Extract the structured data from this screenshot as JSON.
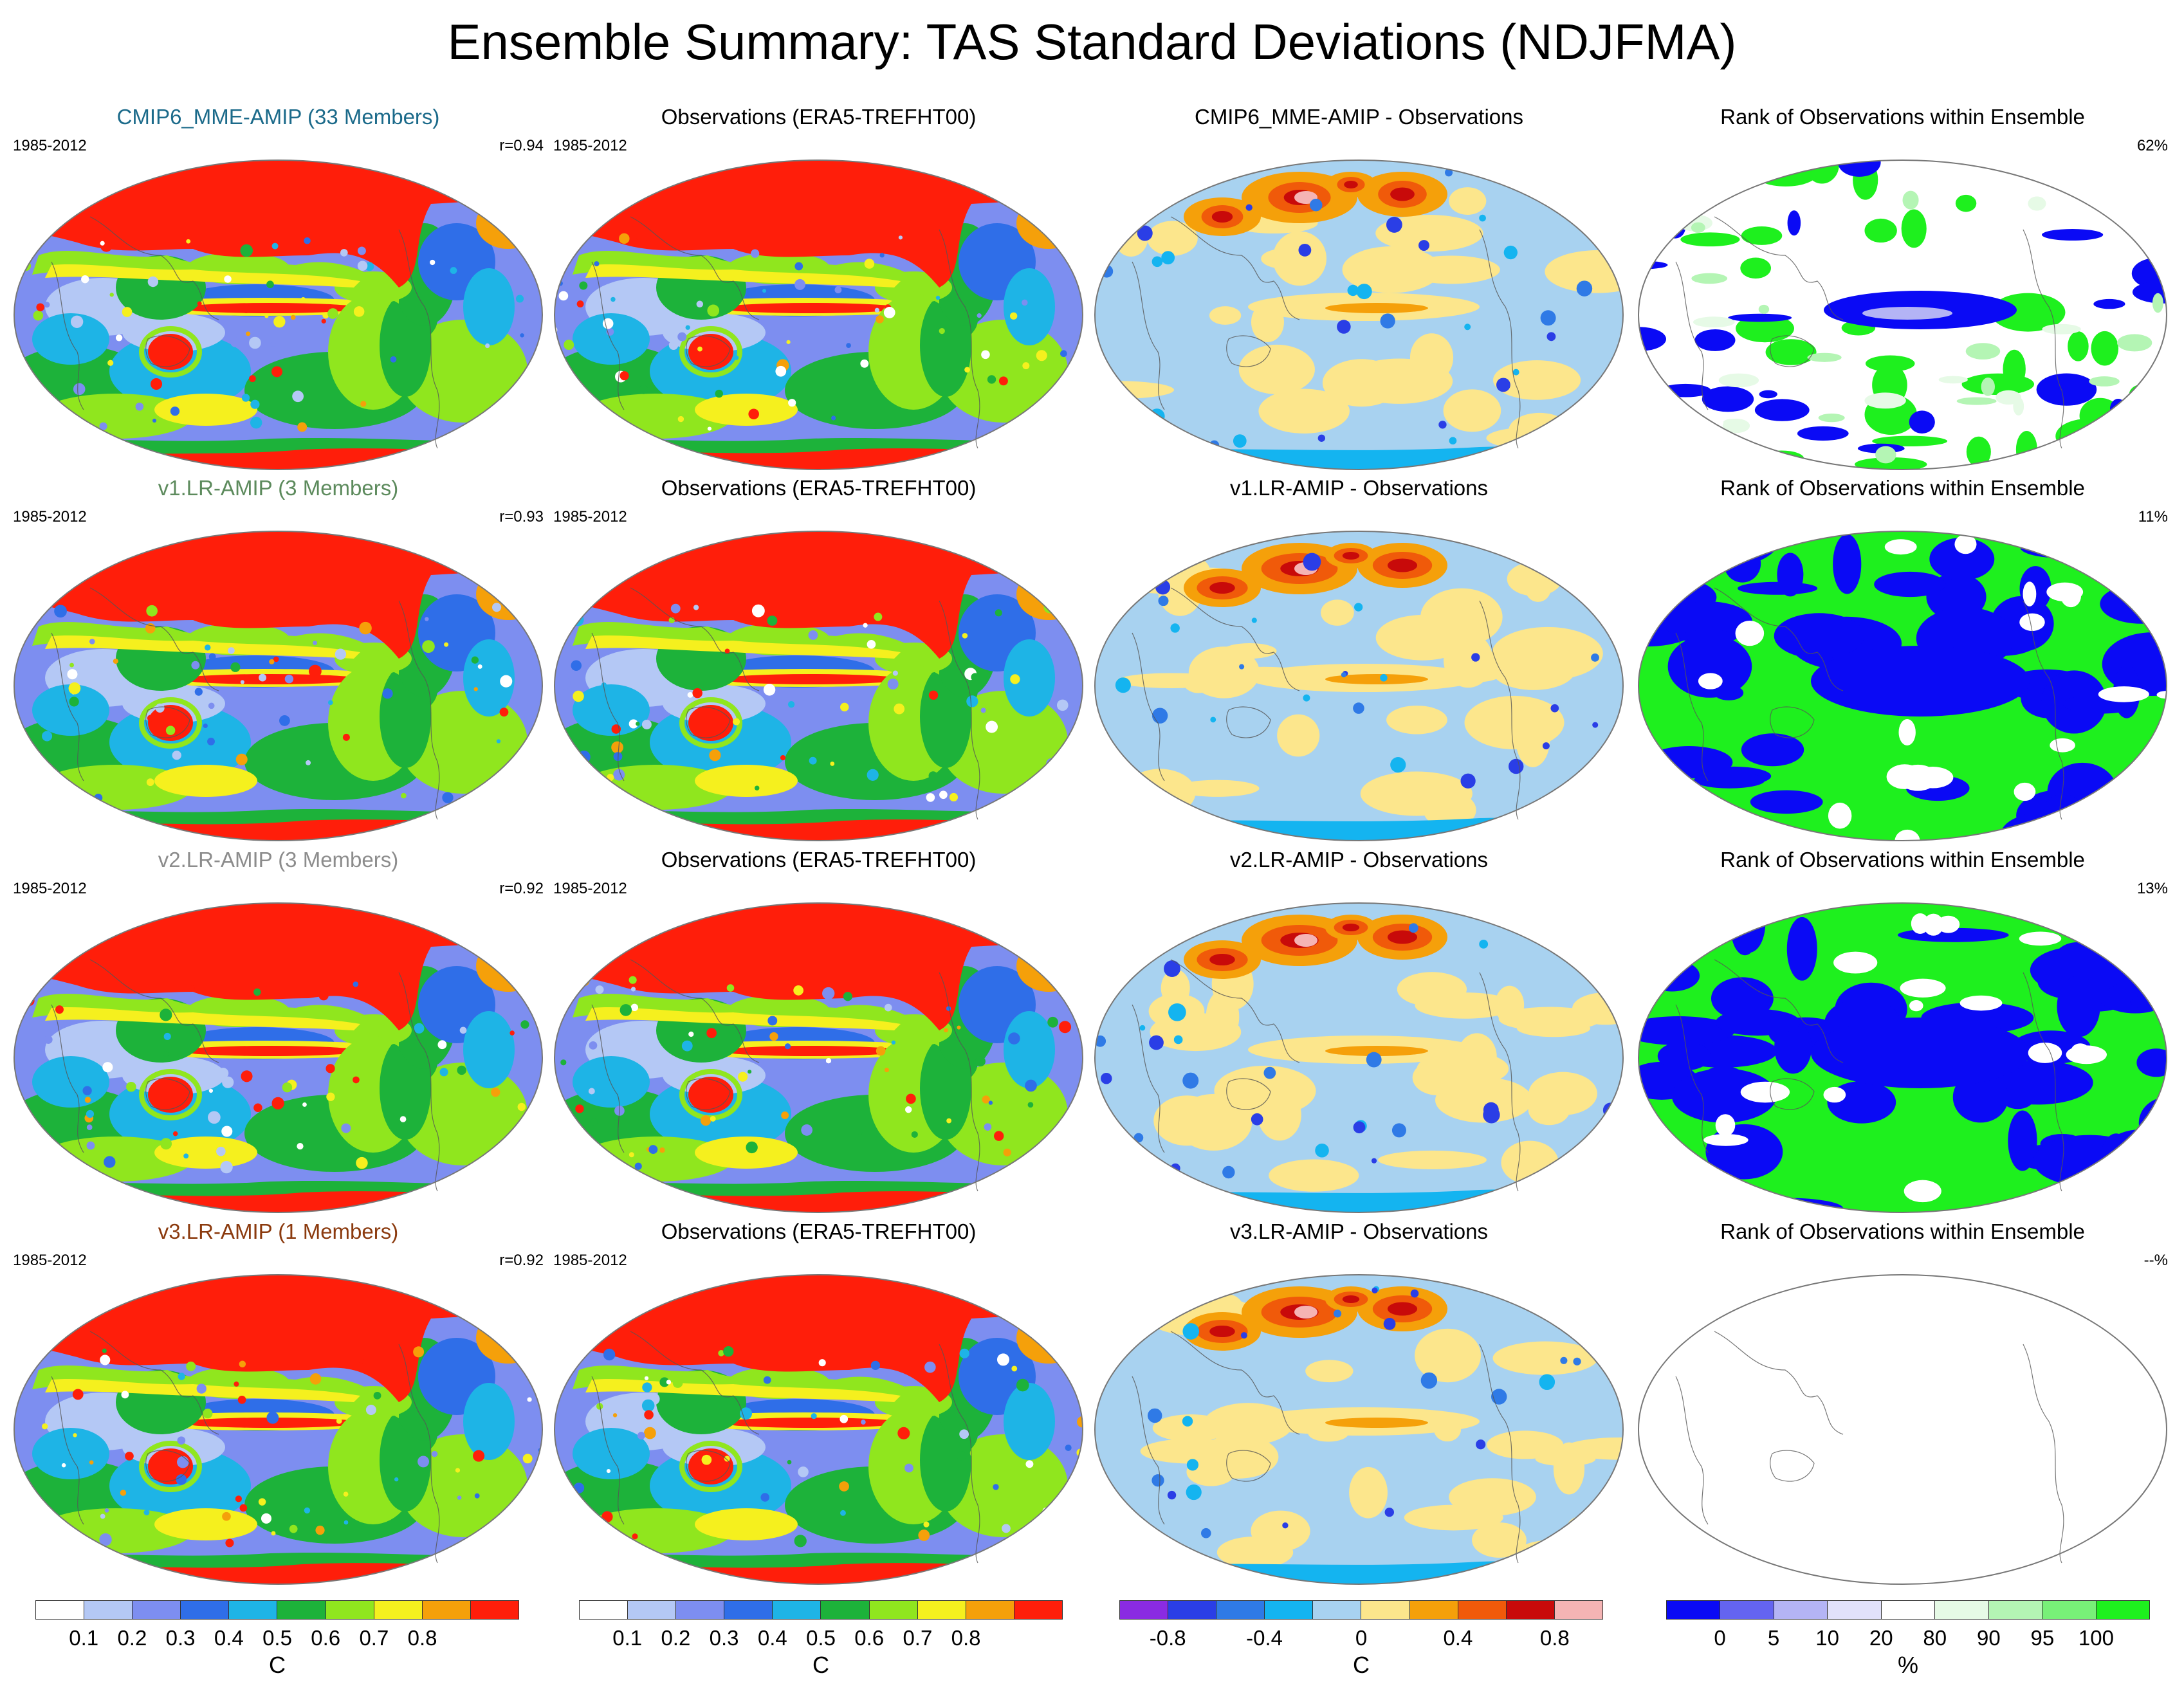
{
  "title": "Ensemble Summary: TAS Standard Deviations (NDJFMA)",
  "period": "1985-2012",
  "rows": [
    {
      "model": "CMIP6_MME-AMIP (33 Members)",
      "model_color": "#1b6a8a",
      "r": "r=0.94",
      "obs": "Observations (ERA5-TREFHT00)",
      "diff": "CMIP6_MME-AMIP - Observations",
      "rank": "Rank of Observations within Ensemble",
      "pct": "62%",
      "rank_style": "sparse"
    },
    {
      "model": "v1.LR-AMIP (3 Members)",
      "model_color": "#5c8a5c",
      "r": "r=0.93",
      "obs": "Observations (ERA5-TREFHT00)",
      "diff": "v1.LR-AMIP - Observations",
      "rank": "Rank of Observations within Ensemble",
      "pct": "11%",
      "rank_style": "dense"
    },
    {
      "model": "v2.LR-AMIP (3 Members)",
      "model_color": "#8c8c8c",
      "r": "r=0.92",
      "obs": "Observations (ERA5-TREFHT00)",
      "diff": "v2.LR-AMIP - Observations",
      "rank": "Rank of Observations within Ensemble",
      "pct": "13%",
      "rank_style": "dense"
    },
    {
      "model": "v3.LR-AMIP (1 Members)",
      "model_color": "#8b3a0e",
      "r": "r=0.92",
      "obs": "Observations (ERA5-TREFHT00)",
      "diff": "v3.LR-AMIP - Observations",
      "rank": "Rank of Observations within Ensemble",
      "pct": "--%",
      "rank_style": "empty"
    }
  ],
  "colorbars": [
    {
      "colors": [
        "#ffffff",
        "#b4c8f5",
        "#7d8ef0",
        "#2f6ee8",
        "#1eb4e6",
        "#1db23a",
        "#90e61e",
        "#f5f01e",
        "#f5a00a",
        "#ff1e0a"
      ],
      "ticks": [
        "0.1",
        "0.2",
        "0.3",
        "0.4",
        "0.5",
        "0.6",
        "0.7",
        "0.8"
      ],
      "unit": "C"
    },
    {
      "colors": [
        "#ffffff",
        "#b4c8f5",
        "#7d8ef0",
        "#2f6ee8",
        "#1eb4e6",
        "#1db23a",
        "#90e61e",
        "#f5f01e",
        "#f5a00a",
        "#ff1e0a"
      ],
      "ticks": [
        "0.1",
        "0.2",
        "0.3",
        "0.4",
        "0.5",
        "0.6",
        "0.7",
        "0.8"
      ],
      "unit": "C"
    },
    {
      "colors": [
        "#8a2be2",
        "#2a3ee6",
        "#2f7ae6",
        "#14b4f0",
        "#a8d2f0",
        "#fce68c",
        "#f5a00a",
        "#f05a0a",
        "#c80a0a",
        "#f5b4b4"
      ],
      "ticks": [
        "-0.8",
        "-0.4",
        "0",
        "0.4",
        "0.8"
      ],
      "unit": "C"
    },
    {
      "colors": [
        "#0a0af5",
        "#6464f0",
        "#b4b4f5",
        "#e1e1fa",
        "#ffffff",
        "#e6fae6",
        "#b4f5b4",
        "#78f078",
        "#1ef01e"
      ],
      "ticks": [
        "0",
        "5",
        "10",
        "20",
        "80",
        "90",
        "95",
        "100"
      ],
      "unit": "%"
    }
  ],
  "chart_data": {
    "type": "heatmap",
    "projection": "Robinson-like global map",
    "variable": "TAS Standard Deviations (NDJFMA)",
    "period": "1985-2012",
    "panels_per_row": [
      "model std",
      "observations std",
      "model - observations",
      "rank of observations within ensemble"
    ],
    "std_levels": [
      0.1,
      0.2,
      0.3,
      0.4,
      0.5,
      0.6,
      0.7,
      0.8
    ],
    "diff_levels": [
      -0.8,
      -0.4,
      0,
      0.4,
      0.8
    ],
    "rank_levels": [
      0,
      5,
      10,
      20,
      80,
      90,
      95,
      100
    ],
    "pattern_correlations": [
      0.94,
      0.93,
      0.92,
      0.92
    ],
    "rank_percent": [
      "62%",
      "11%",
      "13%",
      "--%"
    ]
  }
}
